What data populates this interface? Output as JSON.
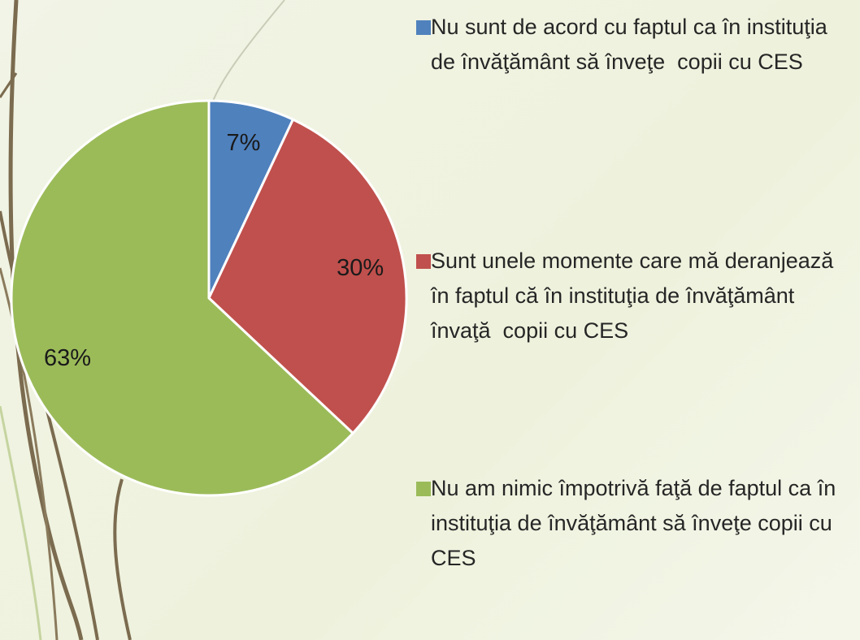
{
  "chart_data": {
    "type": "pie",
    "categories": [
      "Nu sunt de acord cu faptul ca în instituţia de învăţământ să înveţe  copii cu CES",
      "Sunt unele momente care mă deranjează în faptul că în instituţia de învăţământ învaţă  copii cu CES",
      "Nu am nimic împotrivă faţă de faptul ca în instituţia de învăţământ să înveţe copii cu CES"
    ],
    "values": [
      7,
      30,
      63
    ],
    "value_labels": [
      "7%",
      "30%",
      "63%"
    ],
    "colors": [
      "#4f81bd",
      "#c0504d",
      "#9bbb59"
    ],
    "legend": "right"
  }
}
